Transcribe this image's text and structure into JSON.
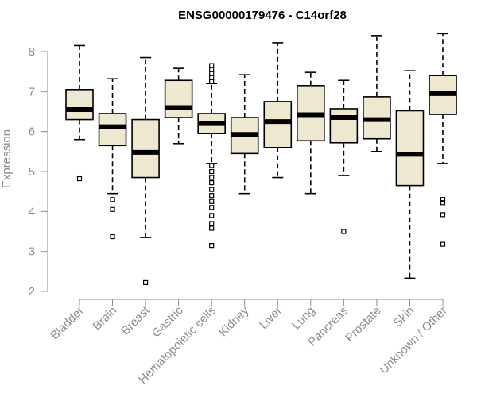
{
  "chart_data": {
    "type": "boxplot",
    "title": "ENSG00000179476 - C14orf28",
    "ylabel": "Expression",
    "ylim": [
      2,
      8.5
    ],
    "yticks": [
      2,
      3,
      4,
      5,
      6,
      7,
      8
    ],
    "box_fill": "#efe8d0",
    "categories": [
      "Bladder",
      "Brain",
      "Breast",
      "Gastric",
      "Hematopoietic cells",
      "Kidney",
      "Liver",
      "Lung",
      "Pancreas",
      "Prostate",
      "Skin",
      "Unknown / Other"
    ],
    "boxes": [
      {
        "category": "Bladder",
        "whisker_low": 5.8,
        "q1": 6.3,
        "median": 6.55,
        "q3": 7.05,
        "whisker_high": 8.15,
        "outliers": [
          4.82
        ]
      },
      {
        "category": "Brain",
        "whisker_low": 4.45,
        "q1": 5.65,
        "median": 6.12,
        "q3": 6.45,
        "whisker_high": 7.32,
        "outliers": [
          4.3,
          4.05,
          3.37
        ]
      },
      {
        "category": "Breast",
        "whisker_low": 3.35,
        "q1": 4.85,
        "median": 5.48,
        "q3": 6.3,
        "whisker_high": 7.85,
        "outliers": [
          2.22
        ]
      },
      {
        "category": "Gastric",
        "whisker_low": 5.7,
        "q1": 6.35,
        "median": 6.6,
        "q3": 7.28,
        "whisker_high": 7.58,
        "outliers": []
      },
      {
        "category": "Hematopoietic cells",
        "whisker_low": 5.2,
        "q1": 5.95,
        "median": 6.2,
        "q3": 6.45,
        "whisker_high": 7.2,
        "outliers": [
          7.25,
          7.35,
          7.45,
          7.55,
          7.65,
          5.15,
          5.0,
          4.85,
          4.72,
          4.55,
          4.4,
          4.25,
          4.1,
          3.9,
          3.7,
          3.58,
          3.15
        ]
      },
      {
        "category": "Kidney",
        "whisker_low": 4.45,
        "q1": 5.45,
        "median": 5.93,
        "q3": 6.35,
        "whisker_high": 7.42,
        "outliers": []
      },
      {
        "category": "Liver",
        "whisker_low": 4.85,
        "q1": 5.6,
        "median": 6.25,
        "q3": 6.75,
        "whisker_high": 8.22,
        "outliers": []
      },
      {
        "category": "Lung",
        "whisker_low": 4.45,
        "q1": 5.77,
        "median": 6.42,
        "q3": 7.15,
        "whisker_high": 7.48,
        "outliers": []
      },
      {
        "category": "Pancreas",
        "whisker_low": 4.9,
        "q1": 5.72,
        "median": 6.35,
        "q3": 6.57,
        "whisker_high": 7.28,
        "outliers": [
          3.5
        ]
      },
      {
        "category": "Prostate",
        "whisker_low": 5.5,
        "q1": 5.82,
        "median": 6.3,
        "q3": 6.87,
        "whisker_high": 8.4,
        "outliers": []
      },
      {
        "category": "Skin",
        "whisker_low": 2.33,
        "q1": 4.65,
        "median": 5.43,
        "q3": 6.52,
        "whisker_high": 7.52,
        "outliers": []
      },
      {
        "category": "Unknown / Other",
        "whisker_low": 5.2,
        "q1": 6.43,
        "median": 6.95,
        "q3": 7.4,
        "whisker_high": 8.45,
        "outliers": [
          4.3,
          4.22,
          3.92,
          3.18
        ]
      }
    ],
    "grid": false,
    "legend": "none"
  }
}
